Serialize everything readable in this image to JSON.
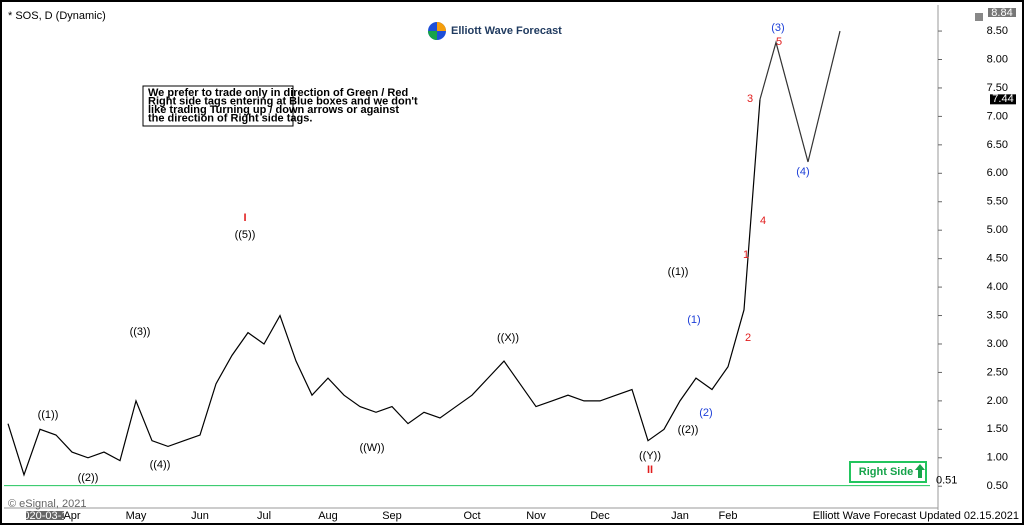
{
  "title": "* SOS, D (Dynamic)",
  "logo": "Elliott Wave Forecast",
  "note": [
    "We prefer to trade only in direction of Green / Red",
    "Right side tags entering at Blue boxes and we don't",
    "like trading Turning up / down arrows or against",
    "the direction of Right side tags."
  ],
  "right_side": "Right Side",
  "footer": "Elliott Wave Forecast Updated 02.15.2021",
  "copyright": "© eSignal, 2021",
  "date_box": "2020-03-11",
  "top_price": "8.84",
  "last_price": "7.44",
  "chart_data": {
    "type": "line",
    "categories": [
      null,
      null,
      null,
      null,
      "Apr",
      null,
      null,
      null,
      "May",
      null,
      null,
      null,
      "Jun",
      null,
      null,
      null,
      "Jul",
      null,
      null,
      null,
      "Aug",
      null,
      null,
      null,
      "Sep",
      null,
      null,
      null,
      null,
      "Oct",
      null,
      null,
      null,
      "Nov",
      null,
      null,
      null,
      "Dec",
      null,
      null,
      null,
      null,
      "Jan",
      null,
      null,
      "Feb",
      null,
      null,
      null,
      null,
      null,
      null,
      null
    ],
    "series": [
      {
        "color": "#000000",
        "values": [
          1.6,
          0.7,
          1.5,
          1.4,
          1.1,
          1.0,
          1.1,
          0.95,
          2.0,
          1.3,
          1.2,
          1.3,
          1.4,
          2.3,
          2.8,
          3.2,
          3.0,
          3.5,
          2.7,
          2.1,
          2.4,
          2.1,
          1.9,
          1.8,
          1.9,
          1.6,
          1.8,
          1.7,
          1.9,
          2.1,
          2.4,
          2.7,
          2.3,
          1.9,
          2.0,
          2.1,
          2.0,
          2.0,
          2.1,
          2.2,
          1.3,
          1.5,
          2.0,
          2.4,
          2.2,
          2.6,
          3.6,
          7.3,
          null,
          null,
          null,
          null,
          null
        ]
      },
      {
        "color": "#333333",
        "values": [
          null,
          null,
          null,
          null,
          null,
          null,
          null,
          null,
          null,
          null,
          null,
          null,
          null,
          null,
          null,
          null,
          null,
          null,
          null,
          null,
          null,
          null,
          null,
          null,
          null,
          null,
          null,
          null,
          null,
          null,
          null,
          null,
          null,
          null,
          null,
          null,
          null,
          null,
          null,
          null,
          null,
          null,
          null,
          null,
          null,
          null,
          null,
          7.3,
          8.3,
          7.25,
          6.2,
          7.35,
          8.5
        ]
      }
    ],
    "ylim": [
      0.17,
      8.87
    ],
    "yticks": [
      {
        "value": 0.5,
        "label": "0.50"
      },
      {
        "value": 1,
        "label": "1.00"
      },
      {
        "value": 1.5,
        "label": "1.50"
      },
      {
        "value": 2,
        "label": "2.00"
      },
      {
        "value": 2.5,
        "label": "2.50"
      },
      {
        "value": 3,
        "label": "3.00"
      },
      {
        "value": 3.5,
        "label": "3.50"
      },
      {
        "value": 4,
        "label": "4.00"
      },
      {
        "value": 4.5,
        "label": "4.50"
      },
      {
        "value": 5,
        "label": "5.00"
      },
      {
        "value": 5.5,
        "label": "5.50"
      },
      {
        "value": 6,
        "label": "6.00"
      },
      {
        "value": 6.5,
        "label": "6.50"
      },
      {
        "value": 7,
        "label": "7.00"
      },
      {
        "value": 7.5,
        "label": "7.50"
      },
      {
        "value": 8,
        "label": "8.00"
      },
      {
        "value": 8.5,
        "label": "8.50"
      }
    ],
    "support": {
      "value": 0.51,
      "label": "0.51",
      "color": "#22c55e"
    },
    "annotations": [
      {
        "text": "I",
        "color": "#e11d1d"
      },
      {
        "text": "((5))",
        "color": "#000000"
      },
      {
        "text": "((1))",
        "color": "#000000"
      },
      {
        "text": "((2))",
        "color": "#000000"
      },
      {
        "text": "((3))",
        "color": "#000000"
      },
      {
        "text": "((4))",
        "color": "#000000"
      },
      {
        "text": "((W))",
        "color": "#000000"
      },
      {
        "text": "((X))",
        "color": "#000000"
      },
      {
        "text": "((Y))",
        "color": "#000000"
      },
      {
        "text": "II",
        "color": "#e11d1d"
      },
      {
        "text": "((1))",
        "color": "#000000"
      },
      {
        "text": "(1)",
        "color": "#1d3fd8"
      },
      {
        "text": "((2))",
        "color": "#000000"
      },
      {
        "text": "(2)",
        "color": "#1d3fd8"
      },
      {
        "text": "1",
        "color": "#e11d1d"
      },
      {
        "text": "2",
        "color": "#e11d1d"
      },
      {
        "text": "3",
        "color": "#e11d1d"
      },
      {
        "text": "4",
        "color": "#e11d1d"
      },
      {
        "text": "5",
        "color": "#e11d1d"
      },
      {
        "text": "(3)",
        "color": "#1d3fd8"
      },
      {
        "text": "(4)",
        "color": "#1d3fd8"
      }
    ]
  }
}
